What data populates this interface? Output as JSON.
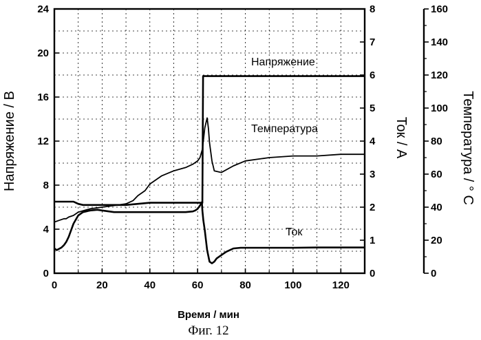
{
  "caption": "Фиг. 12",
  "chart_data": {
    "type": "line",
    "xlabel": "Время / мин",
    "xlim": [
      0,
      130
    ],
    "x_ticks": [
      "0",
      "20",
      "40",
      "60",
      "80",
      "100",
      "120"
    ],
    "axes": {
      "voltage": {
        "label": "Напряжение / В",
        "lim": [
          0,
          24
        ],
        "ticks": [
          "0",
          "4",
          "8",
          "12",
          "16",
          "20",
          "24"
        ],
        "position": "left"
      },
      "current": {
        "label": "Ток / А",
        "lim": [
          0,
          8
        ],
        "ticks": [
          "0",
          "1",
          "2",
          "3",
          "4",
          "5",
          "6",
          "7",
          "8"
        ],
        "position": "right"
      },
      "temperature": {
        "label": "Температура  / ° С",
        "lim": [
          0,
          160
        ],
        "ticks": [
          "0",
          "20",
          "40",
          "60",
          "80",
          "100",
          "120",
          "140",
          "160"
        ],
        "position": "far-right"
      }
    },
    "grid": true,
    "series": [
      {
        "name": "Напряжение",
        "axis": "voltage",
        "x": [
          0,
          1,
          2,
          3,
          4,
          5,
          6,
          7,
          8,
          9,
          10,
          12,
          14,
          16,
          18,
          20,
          25,
          30,
          35,
          40,
          45,
          50,
          55,
          58,
          60,
          61,
          62,
          62.3,
          63,
          65,
          70,
          80,
          90,
          100,
          110,
          120,
          130
        ],
        "values": [
          6.5,
          6.5,
          6.5,
          6.5,
          6.5,
          6.5,
          6.5,
          6.5,
          6.5,
          6.4,
          6.3,
          6.2,
          6.2,
          6.2,
          6.2,
          6.2,
          6.2,
          6.2,
          6.3,
          6.4,
          6.4,
          6.4,
          6.4,
          6.4,
          6.4,
          6.4,
          6.4,
          17.9,
          17.9,
          17.9,
          17.9,
          17.9,
          17.9,
          17.9,
          17.9,
          17.9,
          17.9
        ]
      },
      {
        "name": "Температура",
        "axis": "temperature",
        "x": [
          0,
          2,
          4,
          5,
          6,
          8,
          10,
          15,
          20,
          25,
          30,
          33,
          35,
          38,
          40,
          45,
          50,
          55,
          58,
          60,
          61,
          62,
          63,
          64,
          64.5,
          65,
          66,
          67,
          70,
          75,
          80,
          90,
          100,
          110,
          120,
          130
        ],
        "values": [
          31,
          32,
          33,
          33,
          34,
          35,
          37,
          39,
          40,
          41,
          42,
          44,
          47,
          50,
          54,
          59,
          62,
          64,
          66,
          68,
          70,
          75,
          88,
          94,
          88,
          79,
          68,
          62,
          61,
          65,
          68,
          70,
          71,
          71,
          72,
          72
        ]
      },
      {
        "name": "Ток",
        "axis": "current",
        "x": [
          0,
          1,
          3,
          4,
          5,
          6,
          7,
          8,
          10,
          12,
          15,
          18,
          20,
          25,
          30,
          35,
          40,
          45,
          50,
          55,
          58,
          59,
          60,
          61,
          61.8,
          62,
          62.4,
          63,
          64,
          65,
          66,
          67,
          68,
          70,
          72,
          75,
          78,
          80,
          90,
          100,
          110,
          120,
          130
        ],
        "values": [
          0.75,
          0.7,
          0.78,
          0.85,
          0.95,
          1.1,
          1.3,
          1.5,
          1.75,
          1.85,
          1.9,
          1.92,
          1.9,
          1.85,
          1.85,
          1.85,
          1.85,
          1.85,
          1.85,
          1.85,
          1.87,
          1.9,
          1.95,
          2.05,
          2.15,
          1.9,
          1.6,
          1.3,
          0.7,
          0.35,
          0.3,
          0.35,
          0.45,
          0.55,
          0.65,
          0.75,
          0.77,
          0.77,
          0.77,
          0.77,
          0.78,
          0.78,
          0.78
        ]
      }
    ],
    "annotations": [
      "Напряжение",
      "Температура",
      "Ток"
    ]
  }
}
